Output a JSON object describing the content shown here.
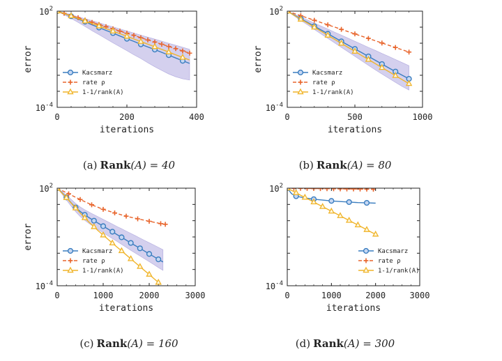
{
  "colors": {
    "kaczmarz": "#3a7dbf",
    "kaczmarz_marker_fill": "#c5d7f3",
    "band": "#8f83d1",
    "rate": "#e8652c",
    "inverse_rank": "#f0b429",
    "axes": "#222222"
  },
  "chart_data": [
    {
      "type": "line",
      "log_y": true,
      "xlim": [
        0,
        400
      ],
      "ylim": [
        0.0001,
        100
      ],
      "xticks": [
        0,
        200,
        400
      ],
      "xlabel": "iterations",
      "ylabel": "error",
      "ytick_labels": [
        {
          "base": "10",
          "exp": "2",
          "value": 100
        },
        {
          "base": "10",
          "exp": "-4",
          "value": 0.0001
        }
      ],
      "legend_position": "lower-left",
      "series": [
        {
          "name": "Kacsmarz",
          "line": "solid",
          "marker": "circle",
          "color": "kaczmarz",
          "x": [
            0,
            20,
            40,
            60,
            80,
            100,
            120,
            140,
            160,
            180,
            200,
            220,
            240,
            260,
            280,
            300,
            320,
            340,
            360,
            380
          ],
          "y": [
            100,
            70,
            48,
            32,
            22,
            14,
            9.5,
            6.3,
            4.3,
            2.8,
            1.9,
            1.3,
            0.85,
            0.58,
            0.4,
            0.27,
            0.18,
            0.12,
            0.08,
            0.055
          ],
          "band_lower": [
            100,
            60,
            35,
            20,
            11,
            6,
            3.4,
            1.9,
            1.05,
            0.6,
            0.34,
            0.19,
            0.11,
            0.06,
            0.034,
            0.02,
            0.012,
            0.008,
            0.006,
            0.005
          ],
          "band_upper": [
            100,
            80,
            60,
            45,
            34,
            26,
            19,
            14,
            10.5,
            7.8,
            5.8,
            4.3,
            3.2,
            2.4,
            1.8,
            1.35,
            1,
            0.75,
            0.56,
            0.42
          ]
        },
        {
          "name": "rate ρ",
          "line": "dashed",
          "marker": "plus",
          "color": "rate",
          "x": [
            0,
            20,
            40,
            60,
            80,
            100,
            120,
            140,
            160,
            180,
            200,
            220,
            240,
            260,
            280,
            300,
            320,
            340,
            360,
            380
          ],
          "y": [
            100,
            73,
            53,
            39,
            28,
            20,
            14.8,
            10.8,
            7.9,
            5.7,
            4.2,
            3.1,
            2.2,
            1.6,
            1.18,
            0.86,
            0.63,
            0.46,
            0.33,
            0.24
          ]
        },
        {
          "name": "1-1/rank(A)",
          "line": "solid",
          "marker": "triangle",
          "color": "inverse_rank",
          "x": [
            0,
            20,
            40,
            60,
            80,
            100,
            120,
            140,
            160,
            180,
            200,
            220,
            240,
            260,
            280,
            300,
            320,
            340,
            360,
            380
          ],
          "y": [
            100,
            71,
            50,
            35,
            24,
            17,
            11.8,
            8.2,
            5.7,
            3.9,
            2.7,
            1.85,
            1.27,
            0.87,
            0.6,
            0.41,
            0.28,
            0.19,
            0.13,
            0.09
          ]
        }
      ]
    },
    {
      "type": "line",
      "log_y": true,
      "xlim": [
        0,
        1000
      ],
      "ylim": [
        0.0001,
        100
      ],
      "xticks": [
        0,
        500,
        1000
      ],
      "xlabel": "iterations",
      "ylabel": "error",
      "ytick_labels": [
        {
          "base": "10",
          "exp": "2",
          "value": 100
        },
        {
          "base": "10",
          "exp": "-4",
          "value": 0.0001
        }
      ],
      "legend_position": "lower-left",
      "series": [
        {
          "name": "Kacsmarz",
          "line": "solid",
          "marker": "circle",
          "color": "kaczmarz",
          "x": [
            0,
            50,
            100,
            150,
            200,
            250,
            300,
            350,
            400,
            450,
            500,
            550,
            600,
            650,
            700,
            750,
            800,
            850,
            900
          ],
          "y": [
            100,
            58,
            34,
            20,
            11.5,
            6.7,
            3.9,
            2.25,
            1.3,
            0.76,
            0.44,
            0.26,
            0.15,
            0.087,
            0.05,
            0.029,
            0.017,
            0.01,
            0.006
          ],
          "band_lower": [
            100,
            50,
            26,
            14,
            7.2,
            3.8,
            2,
            1.05,
            0.55,
            0.29,
            0.15,
            0.08,
            0.042,
            0.022,
            0.012,
            0.0065,
            0.0036,
            0.002,
            0.0012
          ],
          "band_upper": [
            100,
            66,
            43,
            28,
            18,
            11.7,
            7.6,
            4.9,
            3.2,
            2.05,
            1.33,
            0.86,
            0.55,
            0.36,
            0.23,
            0.15,
            0.096,
            0.062,
            0.04
          ]
        },
        {
          "name": "rate ρ",
          "line": "dashed",
          "marker": "plus",
          "color": "rate",
          "x": [
            0,
            100,
            200,
            300,
            400,
            500,
            600,
            700,
            800,
            900
          ],
          "y": [
            100,
            52,
            27,
            14,
            7.3,
            3.8,
            2,
            1.03,
            0.54,
            0.28
          ]
        },
        {
          "name": "1-1/rank(A)",
          "line": "solid",
          "marker": "triangle",
          "color": "inverse_rank",
          "x": [
            0,
            50,
            100,
            150,
            200,
            250,
            300,
            350,
            400,
            450,
            500,
            550,
            600,
            650,
            700,
            750,
            800,
            850,
            900
          ],
          "y": [
            100,
            56,
            31,
            18,
            10,
            5.6,
            3.1,
            1.75,
            0.98,
            0.55,
            0.31,
            0.17,
            0.096,
            0.054,
            0.03,
            0.017,
            0.0095,
            0.0053,
            0.003
          ]
        }
      ]
    },
    {
      "type": "line",
      "log_y": true,
      "xlim": [
        0,
        3000
      ],
      "ylim": [
        0.0001,
        100
      ],
      "xticks": [
        0,
        1000,
        2000,
        3000
      ],
      "xlabel": "iterations",
      "ylabel": "error",
      "ytick_labels": [
        {
          "base": "10",
          "exp": "2",
          "value": 100
        },
        {
          "base": "10",
          "exp": "-4",
          "value": 0.0001
        }
      ],
      "legend_position": "lower-left",
      "series": [
        {
          "name": "Kacsmarz",
          "line": "solid",
          "marker": "circle",
          "color": "kaczmarz",
          "x": [
            0,
            100,
            200,
            300,
            400,
            500,
            600,
            700,
            800,
            900,
            1000,
            1100,
            1200,
            1300,
            1400,
            1500,
            1600,
            1700,
            1800,
            1900,
            2000,
            2100,
            2200,
            2300
          ],
          "y": [
            100,
            55,
            27,
            13,
            6.5,
            3.7,
            2.3,
            1.5,
            1,
            0.68,
            0.46,
            0.31,
            0.21,
            0.14,
            0.095,
            0.064,
            0.043,
            0.029,
            0.02,
            0.0135,
            0.009,
            0.0062,
            0.0042,
            0.0029
          ],
          "band_lower": [
            100,
            45,
            19,
            8,
            3.6,
            1.8,
            1.05,
            0.65,
            0.42,
            0.27,
            0.18,
            0.12,
            0.08,
            0.053,
            0.035,
            0.023,
            0.015,
            0.01,
            0.0068,
            0.0045,
            0.003,
            0.002,
            0.0013,
            0.00088
          ],
          "band_upper": [
            100,
            65,
            38,
            21,
            11.5,
            7,
            4.7,
            3.3,
            2.35,
            1.68,
            1.2,
            0.86,
            0.62,
            0.44,
            0.32,
            0.23,
            0.165,
            0.12,
            0.085,
            0.061,
            0.044,
            0.032,
            0.023,
            0.0165
          ]
        },
        {
          "name": "rate ρ",
          "line": "dashed",
          "marker": "plus",
          "color": "rate",
          "x": [
            0,
            250,
            500,
            750,
            1000,
            1250,
            1500,
            1750,
            2000,
            2250,
            2350
          ],
          "y": [
            100,
            45,
            20,
            9.5,
            5,
            3,
            1.9,
            1.3,
            0.92,
            0.66,
            0.6
          ]
        },
        {
          "name": "1-1/rank(A)",
          "line": "solid",
          "marker": "triangle",
          "color": "inverse_rank",
          "x": [
            0,
            100,
            200,
            300,
            400,
            500,
            600,
            700,
            800,
            900,
            1000,
            1100,
            1200,
            1300,
            1400,
            1500,
            1600,
            1700,
            1800,
            1900,
            2000,
            2100,
            2200
          ],
          "y": [
            100,
            52,
            26,
            12.5,
            6,
            3,
            1.5,
            0.78,
            0.42,
            0.23,
            0.13,
            0.074,
            0.042,
            0.024,
            0.014,
            0.0079,
            0.0045,
            0.0026,
            0.0015,
            0.00085,
            0.0005,
            0.00028,
            0.00016
          ]
        }
      ]
    },
    {
      "type": "line",
      "log_y": true,
      "xlim": [
        0,
        3000
      ],
      "ylim": [
        0.0001,
        100
      ],
      "xticks": [
        0,
        1000,
        2000,
        3000
      ],
      "xlabel": "iterations",
      "ylabel": "",
      "ytick_labels": [
        {
          "base": "10",
          "exp": "2",
          "value": 100
        },
        {
          "base": "10",
          "exp": "-4",
          "value": 0.0001
        }
      ],
      "legend_position": "lower-right",
      "series": [
        {
          "name": "Kacsmarz",
          "line": "solid",
          "marker": "circle",
          "color": "kaczmarz",
          "x": [
            0,
            100,
            200,
            400,
            600,
            800,
            1000,
            1200,
            1400,
            1600,
            1800,
            2000
          ],
          "y": [
            100,
            45,
            32,
            25,
            21,
            18.5,
            16.5,
            15,
            14,
            13,
            12.5,
            12
          ]
        },
        {
          "name": "rate ρ",
          "line": "dashed",
          "marker": "plus",
          "color": "rate",
          "x": [
            0,
            150,
            300,
            450,
            600,
            750,
            900,
            1050,
            1200,
            1350,
            1500,
            1650,
            1800,
            1950
          ],
          "y": [
            100,
            98,
            97,
            96,
            95,
            94,
            93,
            92,
            91,
            90,
            89,
            88,
            87,
            86
          ]
        },
        {
          "name": "1-1/rank(A)",
          "line": "solid",
          "marker": "triangle",
          "color": "inverse_rank",
          "x": [
            0,
            100,
            200,
            300,
            400,
            500,
            600,
            700,
            800,
            900,
            1000,
            1100,
            1200,
            1300,
            1400,
            1500,
            1600,
            1700,
            1800,
            1900,
            2000,
            2050
          ],
          "y": [
            100,
            72,
            52,
            37,
            27,
            19.5,
            14,
            10,
            7.3,
            5.3,
            3.8,
            2.75,
            2,
            1.43,
            1.03,
            0.75,
            0.54,
            0.39,
            0.28,
            0.2,
            0.145,
            0.125
          ]
        }
      ]
    }
  ],
  "captions": [
    {
      "label": "(a)",
      "bold": "Rank",
      "math": "(A) = 40"
    },
    {
      "label": "(b)",
      "bold": "Rank",
      "math": "(A) = 80"
    },
    {
      "label": "(c)",
      "bold": "Rank",
      "math": "(A) = 160"
    },
    {
      "label": "(d)",
      "bold": "Rank",
      "math": "(A) = 300"
    }
  ]
}
